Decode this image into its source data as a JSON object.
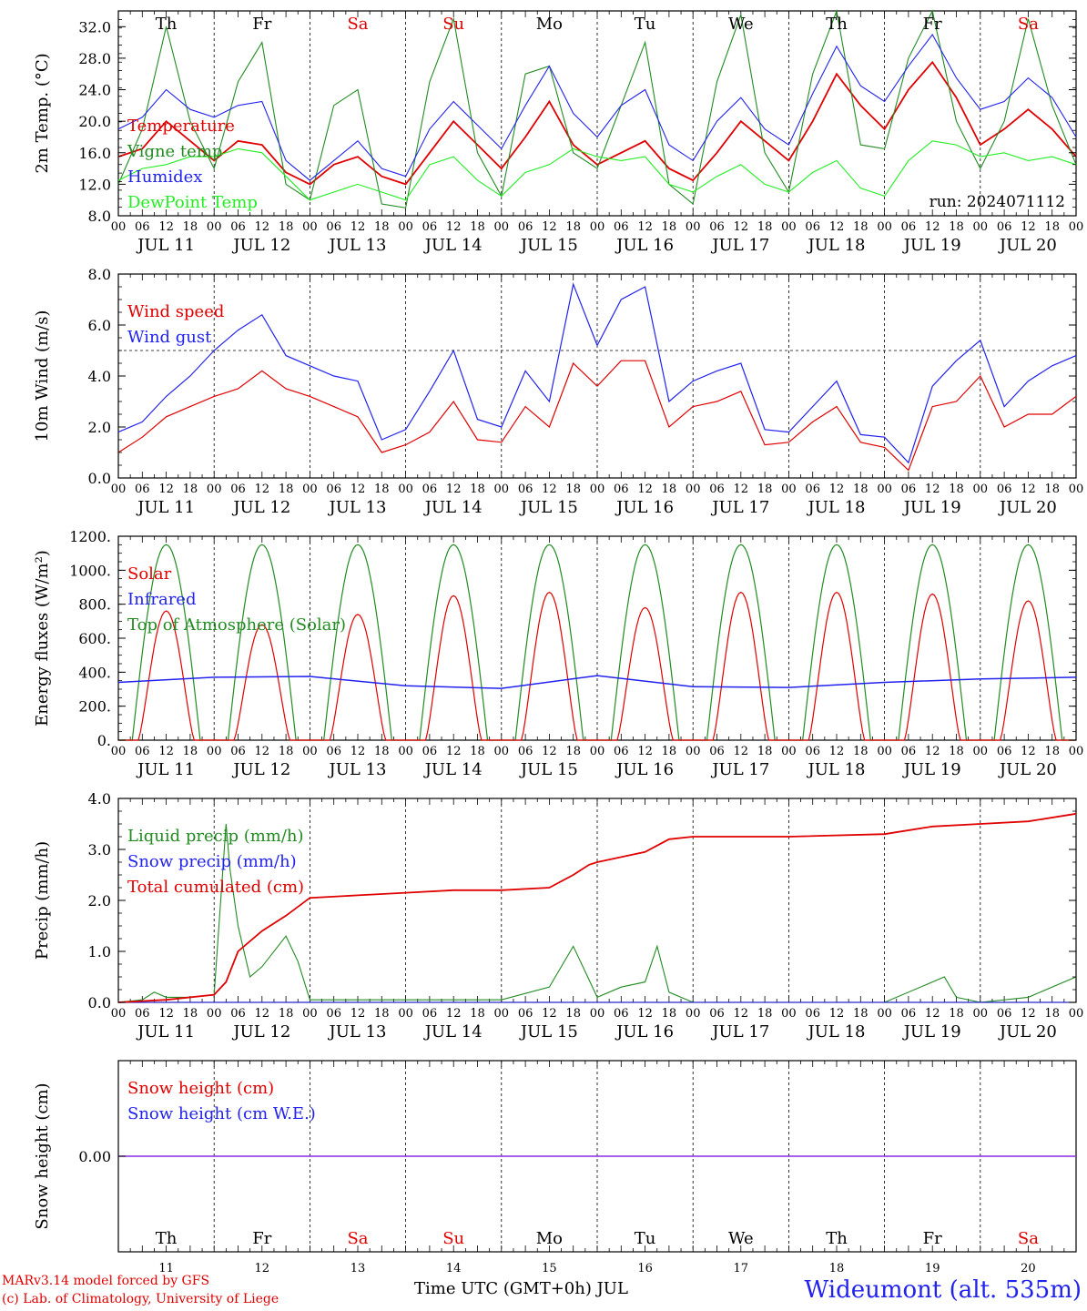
{
  "chart_data": [
    {
      "type": "line",
      "ylabel": "2m Temp. (°C)",
      "ylim": [
        8,
        34
      ],
      "yticks": [
        "8.0",
        "12.0",
        "16.0",
        "20.0",
        "24.0",
        "28.0",
        "32.0"
      ],
      "grid": "vertical dashed at day boundaries",
      "run_label": "run: 2024071112",
      "legend": [
        "Temperature",
        "Vigne temp",
        "Humidex",
        "DewPoint Temp"
      ],
      "series": [
        {
          "name": "Temperature",
          "color": "#e00000",
          "x": [
            0,
            6,
            12,
            18,
            24,
            30,
            36,
            42,
            48,
            54,
            60,
            66,
            72,
            78,
            84,
            90,
            96,
            102,
            108,
            114,
            120,
            126,
            132,
            138,
            144,
            150,
            156,
            162,
            168,
            174,
            180,
            186,
            192,
            198,
            204,
            210,
            216,
            222,
            228,
            234,
            240
          ],
          "y": [
            15.5,
            16.5,
            20.0,
            17.5,
            15.0,
            17.5,
            17.0,
            13.5,
            12.0,
            14.5,
            15.5,
            13.0,
            12.0,
            16.0,
            20.0,
            17.0,
            14.0,
            18.0,
            22.5,
            17.0,
            14.5,
            16.0,
            17.5,
            14.0,
            12.5,
            16.0,
            20.0,
            17.5,
            15.0,
            20.0,
            26.0,
            22.0,
            19.0,
            24.0,
            27.5,
            23.0,
            17.0,
            19.0,
            21.5,
            19.0,
            15.5
          ]
        },
        {
          "name": "Vigne temp",
          "color": "#228b22",
          "x": [
            0,
            6,
            12,
            18,
            24,
            30,
            36,
            42,
            48,
            54,
            60,
            66,
            72,
            78,
            84,
            90,
            96,
            102,
            108,
            114,
            120,
            126,
            132,
            138,
            144,
            150,
            156,
            162,
            168,
            174,
            180,
            186,
            192,
            198,
            204,
            210,
            216,
            222,
            228,
            234,
            240
          ],
          "y": [
            12.0,
            19.0,
            32.0,
            20.0,
            14.0,
            25.0,
            30.0,
            12.0,
            10.0,
            22.0,
            24.0,
            9.5,
            9.0,
            25.0,
            33.0,
            16.0,
            10.5,
            26.0,
            27.0,
            16.0,
            14.0,
            22.0,
            30.0,
            12.0,
            9.5,
            25.0,
            33.5,
            16.0,
            11.0,
            26.0,
            34.0,
            17.0,
            16.5,
            28.0,
            34.0,
            20.0,
            14.0,
            20.0,
            33.0,
            22.0,
            14.5
          ]
        },
        {
          "name": "Humidex",
          "color": "#2222ee",
          "x": [
            0,
            6,
            12,
            18,
            24,
            30,
            36,
            42,
            48,
            54,
            60,
            66,
            72,
            78,
            84,
            90,
            96,
            102,
            108,
            114,
            120,
            126,
            132,
            138,
            144,
            150,
            156,
            162,
            168,
            174,
            180,
            186,
            192,
            198,
            204,
            210,
            216,
            222,
            228,
            234,
            240
          ],
          "y": [
            19.0,
            20.5,
            24.0,
            21.5,
            20.5,
            22.0,
            22.5,
            15.0,
            12.5,
            15.0,
            17.5,
            14.0,
            13.0,
            19.0,
            22.5,
            19.5,
            16.5,
            22.0,
            27.0,
            21.0,
            18.0,
            22.0,
            24.0,
            17.0,
            15.0,
            20.0,
            23.0,
            19.0,
            17.0,
            23.5,
            29.5,
            24.5,
            22.5,
            27.0,
            31.0,
            25.5,
            21.5,
            22.5,
            25.5,
            23.0,
            18.0
          ]
        },
        {
          "name": "DewPoint Temp",
          "color": "#22ee22",
          "x": [
            0,
            6,
            12,
            18,
            24,
            30,
            36,
            42,
            48,
            54,
            60,
            66,
            72,
            78,
            84,
            90,
            96,
            102,
            108,
            114,
            120,
            126,
            132,
            138,
            144,
            150,
            156,
            162,
            168,
            174,
            180,
            186,
            192,
            198,
            204,
            210,
            216,
            222,
            228,
            234,
            240
          ],
          "y": [
            12.5,
            14.0,
            14.5,
            15.5,
            15.5,
            16.5,
            16.0,
            13.0,
            10.0,
            11.0,
            12.0,
            11.0,
            10.0,
            14.5,
            15.5,
            12.5,
            10.5,
            13.5,
            14.5,
            16.5,
            15.5,
            15.0,
            15.5,
            12.0,
            11.0,
            13.0,
            14.5,
            12.0,
            11.0,
            13.5,
            15.0,
            11.5,
            10.5,
            15.0,
            17.5,
            17.0,
            15.5,
            16.0,
            15.0,
            15.5,
            14.5
          ]
        }
      ],
      "day_labels": [
        "Th",
        "Fr",
        "Sa",
        "Su",
        "Mo",
        "Tu",
        "We",
        "Th",
        "Fr",
        "Sa"
      ],
      "weekend_color": "#e00000"
    },
    {
      "type": "line",
      "ylabel": "10m Wind (m/s)",
      "ylim": [
        0,
        8
      ],
      "yticks": [
        "0.0",
        "2.0",
        "4.0",
        "6.0",
        "8.0"
      ],
      "reference_line": 5,
      "legend": [
        "Wind speed",
        "Wind gust"
      ],
      "series": [
        {
          "name": "Wind speed",
          "color": "#e00000",
          "x": [
            0,
            6,
            12,
            18,
            24,
            30,
            36,
            42,
            48,
            54,
            60,
            66,
            72,
            78,
            84,
            90,
            96,
            102,
            108,
            114,
            120,
            126,
            132,
            138,
            144,
            150,
            156,
            162,
            168,
            174,
            180,
            186,
            192,
            198,
            204,
            210,
            216,
            222,
            228,
            234,
            240
          ],
          "y": [
            1.0,
            1.6,
            2.4,
            2.8,
            3.2,
            3.5,
            4.2,
            3.5,
            3.2,
            2.8,
            2.4,
            1.0,
            1.3,
            1.8,
            3.0,
            1.5,
            1.4,
            2.8,
            2.0,
            4.5,
            3.6,
            4.6,
            4.6,
            2.0,
            2.8,
            3.0,
            3.4,
            1.3,
            1.4,
            2.2,
            2.8,
            1.4,
            1.2,
            0.3,
            2.8,
            3.0,
            4.0,
            2.0,
            2.5,
            2.5,
            3.2
          ]
        },
        {
          "name": "Wind gust",
          "color": "#2222ee",
          "x": [
            0,
            6,
            12,
            18,
            24,
            30,
            36,
            42,
            48,
            54,
            60,
            66,
            72,
            78,
            84,
            90,
            96,
            102,
            108,
            114,
            120,
            126,
            132,
            138,
            144,
            150,
            156,
            162,
            168,
            174,
            180,
            186,
            192,
            198,
            204,
            210,
            216,
            222,
            228,
            234,
            240
          ],
          "y": [
            1.8,
            2.2,
            3.2,
            4.0,
            5.0,
            5.8,
            6.4,
            4.8,
            4.4,
            4.0,
            3.8,
            1.5,
            1.9,
            3.4,
            5.0,
            2.3,
            2.0,
            4.2,
            3.0,
            7.6,
            5.2,
            7.0,
            7.5,
            3.0,
            3.8,
            4.2,
            4.5,
            1.9,
            1.8,
            2.8,
            3.8,
            1.7,
            1.6,
            0.6,
            3.6,
            4.6,
            5.4,
            2.8,
            3.8,
            4.4,
            4.8
          ]
        }
      ]
    },
    {
      "type": "line",
      "ylabel": "Energy fluxes (W/m²)",
      "ylim": [
        0,
        1200
      ],
      "yticks": [
        "0.",
        "200.",
        "400.",
        "600.",
        "800.",
        "1000.",
        "1200."
      ],
      "legend": [
        "Solar",
        "Infrared",
        "Top of Atmosphere (Solar)"
      ],
      "toa_peak": 1150,
      "solar_peaks": [
        760,
        680,
        740,
        850,
        870,
        780,
        870,
        870,
        860,
        820
      ],
      "series": [
        {
          "name": "Infrared",
          "color": "#2222ee",
          "x": [
            0,
            24,
            48,
            72,
            96,
            120,
            144,
            168,
            192,
            216,
            240
          ],
          "y": [
            340,
            370,
            375,
            320,
            305,
            380,
            315,
            310,
            340,
            360,
            370
          ]
        }
      ]
    },
    {
      "type": "line",
      "ylabel": "Precip (mm/h)",
      "ylim": [
        0,
        4
      ],
      "yticks": [
        "0.0",
        "1.0",
        "2.0",
        "3.0",
        "4.0"
      ],
      "legend": [
        "Liquid precip (mm/h)",
        "Snow precip (mm/h)",
        "Total cumulated (cm)"
      ],
      "series": [
        {
          "name": "Liquid precip (mm/h)",
          "color": "#228b22",
          "x": [
            0,
            6,
            9,
            12,
            18,
            24,
            27,
            28,
            30,
            33,
            36,
            42,
            45,
            48,
            96,
            108,
            114,
            117,
            120,
            126,
            132,
            135,
            138,
            144,
            192,
            204,
            207,
            210,
            216,
            228,
            240
          ],
          "y": [
            0,
            0.05,
            0.2,
            0.1,
            0.1,
            0.15,
            3.5,
            2.6,
            1.5,
            0.5,
            0.7,
            1.3,
            0.8,
            0.05,
            0.05,
            0.3,
            1.1,
            0.6,
            0.1,
            0.3,
            0.4,
            1.1,
            0.2,
            0,
            0,
            0.4,
            0.5,
            0.1,
            0,
            0.1,
            0.5
          ]
        },
        {
          "name": "Snow precip (mm/h)",
          "color": "#2222ee",
          "x": [
            0,
            240
          ],
          "y": [
            0,
            0
          ]
        },
        {
          "name": "Total cumulated (cm)",
          "color": "#e00000",
          "x": [
            0,
            12,
            24,
            27,
            30,
            36,
            42,
            48,
            60,
            72,
            84,
            96,
            108,
            114,
            118,
            120,
            126,
            132,
            138,
            144,
            168,
            192,
            204,
            216,
            228,
            240
          ],
          "y": [
            0,
            0.05,
            0.15,
            0.4,
            1.0,
            1.4,
            1.7,
            2.05,
            2.1,
            2.15,
            2.2,
            2.2,
            2.25,
            2.5,
            2.7,
            2.75,
            2.85,
            2.95,
            3.2,
            3.25,
            3.25,
            3.3,
            3.45,
            3.5,
            3.55,
            3.7
          ]
        }
      ]
    },
    {
      "type": "line",
      "ylabel": "Snow height (cm)",
      "ytick": "0.00",
      "legend": [
        "Snow height (cm)",
        "Snow height (cm W.E.)"
      ],
      "series": [
        {
          "name": "Snow height (cm)",
          "color": "#e00000",
          "x": [
            0,
            240
          ],
          "y": [
            0,
            0
          ]
        },
        {
          "name": "Snow height (cm W.E.)",
          "color": "#2222ee",
          "x": [
            0,
            240
          ],
          "y": [
            0,
            0
          ]
        }
      ]
    }
  ],
  "hour_ticks": [
    "00",
    "06",
    "12",
    "18"
  ],
  "date_labels": [
    "JUL 11",
    "JUL 12",
    "JUL 13",
    "JUL 14",
    "JUL 15",
    "JUL 16",
    "JUL 17",
    "JUL 18",
    "JUL 19",
    "JUL 20"
  ],
  "day_numbers": [
    "11",
    "12",
    "13",
    "14",
    "15",
    "16",
    "17",
    "18",
    "19",
    "20"
  ],
  "xlabel": "Time UTC (GMT+0h) JUL",
  "credit_line1": "MARv3.14 model forced by GFS",
  "credit_line2": "(c) Lab. of Climatology, University of Liege",
  "station": "Wideumont (alt. 535m)"
}
